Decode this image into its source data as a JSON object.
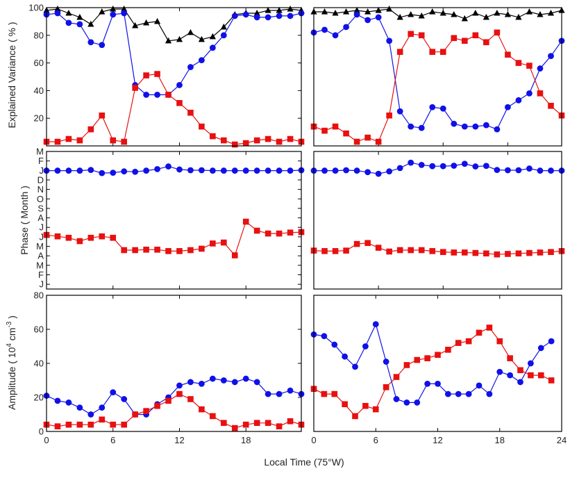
{
  "figure": {
    "xlabel": "Local Time (75°W)",
    "row_ylabels": [
      "Explained Variance ( % )",
      "Phase ( Month )",
      "Amplitude ( 10^4 cm^-3 )"
    ],
    "amp_label": {
      "base": "Amplitude ( 10",
      "exp1": "4",
      "mid": " cm",
      "exp2": "-3",
      "end": " )"
    }
  },
  "colors": {
    "black": "#000000",
    "blue": "#1010e8",
    "red": "#e81010",
    "axis": "#000000"
  },
  "chart_data": [
    {
      "type": "line",
      "panel": "variance-left",
      "ylabel": "Explained Variance ( % )",
      "xlim": [
        0,
        23
      ],
      "ylim": [
        0,
        100
      ],
      "xticks": [
        0,
        6,
        12,
        18
      ],
      "xticklabels": [
        "",
        "",
        "",
        ""
      ],
      "yticks": [
        20,
        40,
        60,
        80,
        100
      ],
      "yticklabels": [
        "20",
        "40",
        "60",
        "80",
        "100"
      ],
      "x": [
        0,
        1,
        2,
        3,
        4,
        5,
        6,
        7,
        8,
        9,
        10,
        11,
        12,
        13,
        14,
        15,
        16,
        17,
        18,
        19,
        20,
        21,
        22,
        23
      ],
      "series": [
        {
          "color": "black",
          "marker": "triangle",
          "values": [
            98,
            99,
            96,
            93,
            88,
            97,
            99,
            99,
            87,
            89,
            90,
            76,
            77,
            82,
            77,
            79,
            86,
            95,
            96,
            96,
            98,
            98,
            99,
            98
          ]
        },
        {
          "color": "blue",
          "marker": "circle",
          "values": [
            95,
            96,
            89,
            88,
            75,
            73,
            95,
            96,
            44,
            37,
            37,
            37,
            44,
            57,
            62,
            71,
            80,
            94,
            95,
            93,
            93,
            94,
            94,
            96
          ]
        },
        {
          "color": "red",
          "marker": "square",
          "values": [
            3,
            3,
            5,
            4,
            12,
            22,
            4,
            3,
            42,
            51,
            52,
            37,
            31,
            24,
            14,
            7,
            4,
            1,
            2,
            4,
            5,
            3,
            5,
            3
          ]
        }
      ]
    },
    {
      "type": "line",
      "panel": "variance-right",
      "ylabel": "",
      "xlim": [
        0,
        23
      ],
      "ylim": [
        0,
        100
      ],
      "xticks": [
        0,
        6,
        12,
        18
      ],
      "xticklabels": [
        "",
        "",
        "",
        ""
      ],
      "yticks": [],
      "yticklabels": [],
      "x": [
        0,
        1,
        2,
        3,
        4,
        5,
        6,
        7,
        8,
        9,
        10,
        11,
        12,
        13,
        14,
        15,
        16,
        17,
        18,
        19,
        20,
        21,
        22,
        23
      ],
      "series": [
        {
          "color": "black",
          "marker": "triangle",
          "values": [
            97,
            97,
            96,
            97,
            98,
            97,
            98,
            99,
            93,
            95,
            94,
            97,
            96,
            95,
            92,
            96,
            93,
            96,
            95,
            93,
            97,
            95,
            96,
            98
          ]
        },
        {
          "color": "blue",
          "marker": "circle",
          "values": [
            82,
            84,
            80,
            86,
            95,
            91,
            93,
            76,
            25,
            14,
            13,
            28,
            27,
            16,
            14,
            14,
            15,
            12,
            28,
            33,
            38,
            56,
            65,
            76
          ]
        },
        {
          "color": "red",
          "marker": "square",
          "values": [
            14,
            11,
            14,
            9,
            3,
            6,
            3,
            22,
            68,
            81,
            80,
            68,
            68,
            78,
            76,
            80,
            75,
            82,
            66,
            60,
            58,
            38,
            29,
            22
          ]
        }
      ]
    },
    {
      "type": "line",
      "panel": "phase-left",
      "ylabel": "Phase ( Month )",
      "xlim": [
        0,
        23
      ],
      "ylim": [
        0.5,
        15
      ],
      "xticks": [
        0,
        6,
        12,
        18
      ],
      "xticklabels": [
        "",
        "",
        "",
        ""
      ],
      "yticks": [
        1,
        2,
        3,
        4,
        5,
        6,
        7,
        8,
        9,
        10,
        11,
        12,
        13,
        14,
        15
      ],
      "yticklabels": [
        "J",
        "F",
        "M",
        "A",
        "M",
        "J",
        "J",
        "A",
        "S",
        "O",
        "N",
        "D",
        "J",
        "F",
        "M"
      ],
      "x": [
        0,
        1,
        2,
        3,
        4,
        5,
        6,
        7,
        8,
        9,
        10,
        11,
        12,
        13,
        14,
        15,
        16,
        17,
        18,
        19,
        20,
        21,
        22,
        23
      ],
      "series": [
        {
          "color": "blue",
          "marker": "circle",
          "values": [
            12.98,
            12.98,
            12.98,
            12.98,
            13.05,
            12.72,
            12.76,
            12.9,
            12.86,
            12.98,
            13.14,
            13.42,
            13.1,
            13.02,
            13.02,
            12.98,
            12.98,
            12.98,
            12.98,
            12.98,
            12.98,
            12.98,
            12.98,
            13.02
          ]
        },
        {
          "color": "red",
          "marker": "square",
          "values": [
            6.2,
            6.05,
            5.9,
            5.55,
            5.9,
            6.05,
            5.9,
            4.6,
            4.6,
            4.65,
            4.65,
            4.5,
            4.5,
            4.6,
            4.75,
            5.3,
            5.4,
            4.05,
            7.6,
            6.65,
            6.35,
            6.35,
            6.45,
            6.5
          ]
        }
      ]
    },
    {
      "type": "line",
      "panel": "phase-right",
      "ylabel": "",
      "xlim": [
        0,
        23
      ],
      "ylim": [
        0.5,
        15
      ],
      "xticks": [
        0,
        6,
        12,
        18
      ],
      "xticklabels": [
        "",
        "",
        "",
        ""
      ],
      "yticks": [],
      "yticklabels": [],
      "x": [
        0,
        1,
        2,
        3,
        4,
        5,
        6,
        7,
        8,
        9,
        10,
        11,
        12,
        13,
        14,
        15,
        16,
        17,
        18,
        19,
        20,
        21,
        22,
        23
      ],
      "series": [
        {
          "color": "blue",
          "marker": "circle",
          "values": [
            12.98,
            12.98,
            12.98,
            13.02,
            12.98,
            12.82,
            12.65,
            12.9,
            13.25,
            13.82,
            13.58,
            13.45,
            13.45,
            13.5,
            13.7,
            13.42,
            13.48,
            13.05,
            13.02,
            13.02,
            13.2,
            12.98,
            12.98,
            12.98
          ]
        },
        {
          "color": "red",
          "marker": "square",
          "values": [
            4.55,
            4.5,
            4.5,
            4.55,
            5.25,
            5.35,
            4.85,
            4.45,
            4.6,
            4.6,
            4.6,
            4.5,
            4.4,
            4.35,
            4.35,
            4.3,
            4.25,
            4.15,
            4.2,
            4.25,
            4.3,
            4.35,
            4.4,
            4.5
          ]
        }
      ]
    },
    {
      "type": "line",
      "panel": "amplitude-left",
      "ylabel": "Amplitude ( 10^4 cm^-3 )",
      "xlim": [
        0,
        23
      ],
      "ylim": [
        0,
        80
      ],
      "xticks": [
        0,
        6,
        12,
        18
      ],
      "xticklabels": [
        "0",
        "6",
        "12",
        "18"
      ],
      "yticks": [
        0,
        20,
        40,
        60,
        80
      ],
      "yticklabels": [
        "0",
        "20",
        "40",
        "60",
        "80"
      ],
      "x": [
        0,
        1,
        2,
        3,
        4,
        5,
        6,
        7,
        8,
        9,
        10,
        11,
        12,
        13,
        14,
        15,
        16,
        17,
        18,
        19,
        20,
        21,
        22,
        23
      ],
      "series": [
        {
          "color": "blue",
          "marker": "circle",
          "values": [
            21,
            18,
            17,
            14,
            10,
            14,
            23,
            19,
            10,
            10,
            16,
            20,
            27,
            29,
            28,
            31,
            30,
            29,
            31,
            29,
            22,
            22,
            24,
            22
          ]
        },
        {
          "color": "red",
          "marker": "square",
          "values": [
            4,
            3,
            4,
            4,
            4,
            7,
            4,
            4,
            10,
            12,
            15,
            18,
            22,
            19,
            13,
            9,
            5,
            2,
            4,
            5,
            5,
            3,
            6,
            4
          ]
        }
      ]
    },
    {
      "type": "line",
      "panel": "amplitude-right",
      "ylabel": "",
      "xlim": [
        0,
        24
      ],
      "ylim": [
        0,
        80
      ],
      "xticks": [
        0,
        6,
        12,
        18,
        24
      ],
      "xticklabels": [
        "0",
        "6",
        "12",
        "18",
        "24"
      ],
      "yticks": [],
      "yticklabels": [],
      "x": [
        0,
        1,
        2,
        3,
        4,
        5,
        6,
        7,
        8,
        9,
        10,
        11,
        12,
        13,
        14,
        15,
        16,
        17,
        18,
        19,
        20,
        21,
        22,
        23
      ],
      "series": [
        {
          "color": "blue",
          "marker": "circle",
          "values": [
            57,
            56,
            51,
            44,
            38,
            50,
            63,
            41,
            19,
            17,
            17,
            28,
            28,
            22,
            22,
            22,
            27,
            22,
            35,
            33,
            29,
            40,
            49,
            53
          ]
        },
        {
          "color": "red",
          "marker": "square",
          "values": [
            25,
            22,
            22,
            16,
            9,
            15,
            13,
            26,
            32,
            39,
            42,
            43,
            45,
            48,
            52,
            53,
            58,
            61,
            53,
            43,
            36,
            33,
            33,
            30
          ]
        }
      ]
    }
  ]
}
